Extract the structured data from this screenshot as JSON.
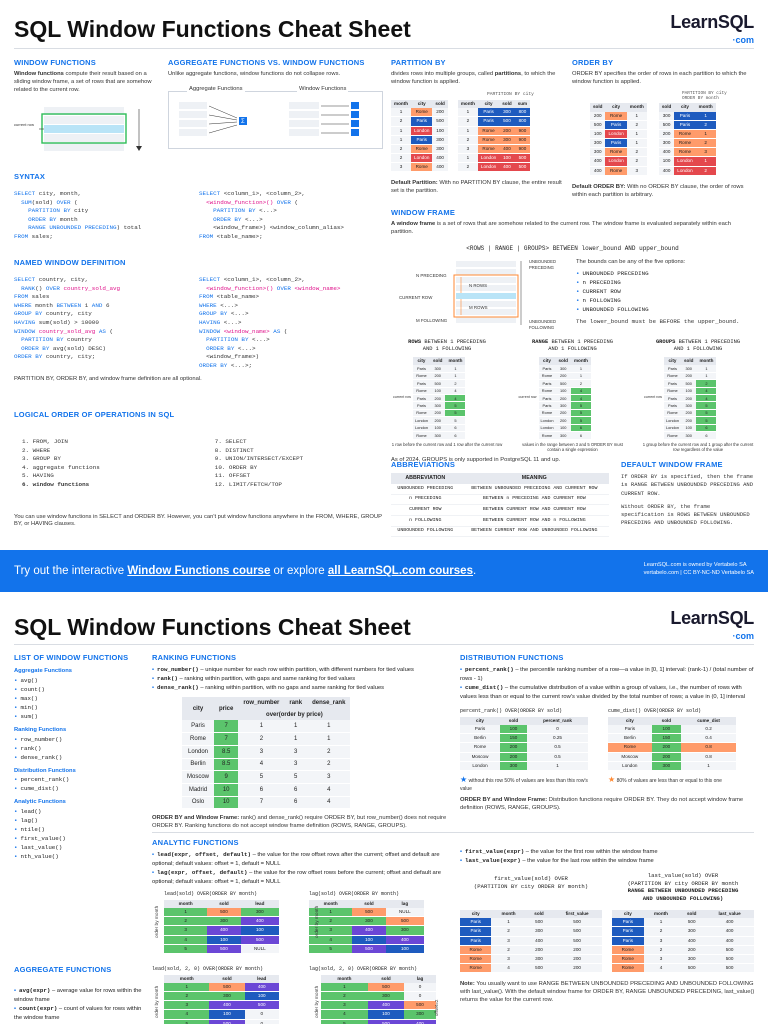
{
  "title1": "SQL Window Functions Cheat Sheet",
  "title2": "SQL Window Functions Cheat Sheet",
  "logo": {
    "name": "LearnSQL",
    "dot": "·",
    "tld": "com"
  },
  "window_functions": {
    "heading": "WINDOW FUNCTIONS",
    "text_bold": "Window functions",
    "text": " compute their result based on a sliding window frame, a set of rows that are somehow related to the current row.",
    "current_row": "current row"
  },
  "agg_vs_window": {
    "heading": "AGGREGATE FUNCTIONS VS. WINDOW FUNCTIONS",
    "text": "Unlike aggregate functions, window functions do not collapse rows.",
    "agg_label": "Aggregate Functions",
    "win_label": "Window Functions",
    "sigma": "Σ"
  },
  "partition_by": {
    "heading": "PARTITION BY",
    "text1": "divides rows into multiple groups, called ",
    "text_bold": "partitions",
    "text2": ", to which the window function is applied.",
    "caption": "PARTITION BY city",
    "cols": [
      "month",
      "city",
      "sold"
    ],
    "cols2": [
      "month",
      "city",
      "sold",
      "sum"
    ],
    "rows": [
      [
        "1",
        "Rome",
        "200"
      ],
      [
        "2",
        "Paris",
        "500"
      ],
      [
        "1",
        "London",
        "100"
      ],
      [
        "1",
        "Paris",
        "300"
      ],
      [
        "2",
        "Rome",
        "300"
      ],
      [
        "2",
        "London",
        "400"
      ],
      [
        "3",
        "Rome",
        "400"
      ]
    ],
    "rows2": [
      [
        "1",
        "Paris",
        "300",
        "800"
      ],
      [
        "2",
        "Paris",
        "500",
        "800"
      ],
      [
        "1",
        "Rome",
        "200",
        "900"
      ],
      [
        "2",
        "Rome",
        "300",
        "900"
      ],
      [
        "3",
        "Rome",
        "400",
        "900"
      ],
      [
        "1",
        "London",
        "100",
        "500"
      ],
      [
        "2",
        "London",
        "400",
        "500"
      ]
    ],
    "default_bold": "Default Partition:",
    "default_text": " With no PARTITION BY clause, the entire result set is the partition."
  },
  "order_by": {
    "heading": "ORDER BY",
    "text": "ORDER BY specifies the order of rows in each partition to which the window function is applied.",
    "caption1": "PARTITION BY city",
    "caption2": "ORDER BY month",
    "cols": [
      "sold",
      "city",
      "month"
    ],
    "rows": [
      [
        "200",
        "Rome",
        "1"
      ],
      [
        "500",
        "Paris",
        "2"
      ],
      [
        "100",
        "London",
        "1"
      ],
      [
        "300",
        "Paris",
        "1"
      ],
      [
        "300",
        "Rome",
        "2"
      ],
      [
        "400",
        "London",
        "2"
      ],
      [
        "400",
        "Rome",
        "3"
      ]
    ],
    "rows2": [
      [
        "300",
        "Paris",
        "1"
      ],
      [
        "500",
        "Paris",
        "2"
      ],
      [
        "200",
        "Rome",
        "1"
      ],
      [
        "300",
        "Rome",
        "2"
      ],
      [
        "400",
        "Rome",
        "3"
      ],
      [
        "100",
        "London",
        "1"
      ],
      [
        "400",
        "London",
        "2"
      ]
    ],
    "default_bold": "Default ORDER BY:",
    "default_text": " With no ORDER BY clause, the order of rows within each partition is arbitrary."
  },
  "syntax": {
    "heading": "SYNTAX",
    "left": [
      "SELECT city, month,",
      "  SUM(sold) OVER (",
      "    PARTITION BY city",
      "    ORDER BY month",
      "    RANGE UNBOUNDED PRECEDING) total",
      "FROM sales;"
    ],
    "right": [
      "SELECT <column_1>, <column_2>,",
      "  <window_function>() OVER (",
      "    PARTITION BY <...>",
      "    ORDER BY <...>",
      "    <window_frame>) <window_column_alias>",
      "FROM <table_name>;"
    ]
  },
  "named_window": {
    "heading": "NAMED WINDOW DEFINITION",
    "left": [
      "SELECT country, city,",
      "  RANK() OVER country_sold_avg",
      "FROM sales",
      "WHERE month BETWEEN 1 AND 6",
      "GROUP BY country, city",
      "HAVING sum(sold) > 10000",
      "WINDOW country_sold_avg AS (",
      "  PARTITION BY country",
      "  ORDER BY avg(sold) DESC)",
      "ORDER BY country, city;"
    ],
    "right": [
      "SELECT <column_1>, <column_2>,",
      "  <window_function>() OVER <window_name>",
      "FROM <table_name>",
      "WHERE <...>",
      "GROUP BY <...>",
      "HAVING <...>",
      "WINDOW <window_name> AS (",
      "  PARTITION BY <...>",
      "  ORDER BY <...>",
      "  <window_frame>)",
      "ORDER BY <...>;"
    ],
    "note": "PARTITION BY, ORDER BY, and window frame definition are all optional."
  },
  "logical_order": {
    "heading": "LOGICAL ORDER OF OPERATIONS IN SQL",
    "left": [
      "1. FROM, JOIN",
      "2. WHERE",
      "3. GROUP BY",
      "4. aggregate functions",
      "5. HAVING",
      "6. window functions"
    ],
    "right": [
      "7. SELECT",
      "8. DISTINCT",
      "9. UNION/INTERSECT/EXCEPT",
      "10. ORDER BY",
      "11. OFFSET",
      "12. LIMIT/FETCH/TOP"
    ],
    "note": "You can use window functions in SELECT and ORDER BY. However, you can't put window functions anywhere in the FROM, WHERE, GROUP BY, or HAVING clauses."
  },
  "window_frame": {
    "heading": "WINDOW FRAME",
    "text_bold": "A window frame",
    "text": " is a set of rows that are somehow related to the current row. The window frame is evaluated separately within each partition.",
    "syntax": "<ROWS | RANGE | GROUPS> BETWEEN lower_bound AND upper_bound",
    "labels": [
      "N PRECEDING",
      "CURRENT ROW",
      "M FOLLOWING",
      "N ROWS",
      "M ROWS",
      "UNBOUNDED PRECEDING",
      "UNBOUNDED FOLLOWING"
    ],
    "bounds_intro": "The bounds can be any of the five options:",
    "bounds": [
      "UNBOUNDED PRECEDING",
      "n PRECEDING",
      "CURRENT ROW",
      "n FOLLOWING",
      "UNBOUNDED FOLLOWING"
    ],
    "bounds_note": "The lower_bound must be BEFORE the upper_bound.",
    "modes": [
      {
        "kw": "ROWS",
        "rest": " BETWEEN 1 PRECEDING",
        "rest2": "AND 1 FOLLOWING",
        "caption": "1 row before the current row and 1 row after the current row"
      },
      {
        "kw": "RANGE",
        "rest": " BETWEEN 1 PRECEDING",
        "rest2": "AND 1 FOLLOWING",
        "caption": "values in the range between 3 and 5 ORDER BY must contain a single expression"
      },
      {
        "kw": "GROUPS",
        "rest": " BETWEEN 1 PRECEDING",
        "rest2": "AND 1 FOLLOWING",
        "caption": "1 group before the current row and 1 group after the current row regardless of the value"
      }
    ],
    "mini_cols": [
      "city",
      "sold",
      "month"
    ],
    "mini_rows": [
      [
        "Paris",
        "300",
        "1"
      ],
      [
        "Rome",
        "200",
        "1"
      ],
      [
        "Paris",
        "500",
        "2"
      ],
      [
        "Rome",
        "100",
        "4"
      ],
      [
        "Paris",
        "200",
        "4"
      ],
      [
        "Paris",
        "300",
        "5"
      ],
      [
        "Rome",
        "200",
        "5"
      ],
      [
        "London",
        "200",
        "5"
      ],
      [
        "London",
        "100",
        "6"
      ],
      [
        "Rome",
        "300",
        "6"
      ]
    ],
    "current_row_label": "current row",
    "note": "As of 2024, GROUPS is only supported in PostgreSQL 11 and up."
  },
  "abbreviations": {
    "heading": "ABBREVIATIONS",
    "cols": [
      "ABBREVIATION",
      "MEANING"
    ],
    "rows": [
      [
        "UNBOUNDED PRECEDING",
        "BETWEEN UNBOUNDED PRECEDING AND CURRENT ROW"
      ],
      [
        "n PRECEDING",
        "BETWEEN n PRECEDING AND CURRENT ROW"
      ],
      [
        "CURRENT ROW",
        "BETWEEN CURRENT ROW AND CURRENT ROW"
      ],
      [
        "n FOLLOWING",
        "BETWEEN CURRENT ROW AND n FOLLOWING"
      ],
      [
        "UNBOUNDED FOLLOWING",
        "BETWEEN CURRENT ROW AND UNBOUNDED FOLLOWING"
      ]
    ]
  },
  "default_frame": {
    "heading": "DEFAULT WINDOW FRAME",
    "p1": "If ORDER BY is specified, then the frame is RANGE BETWEEN UNBOUNDED PRECEDING AND CURRENT ROW.",
    "p2": "Without ORDER BY, the frame specification is ROWS BETWEEN UNBOUNDED PRECEDING AND UNBOUNDED FOLLOWING."
  },
  "banner": {
    "pre": "Try out the interactive ",
    "link1": "Window Functions course",
    "mid": " or explore ",
    "link2": "all LearnSQL.com courses",
    "post": ".",
    "lic1": "LearnSQL.com is owned by Vertabelo SA",
    "lic2": "vertabelo.com | CC BY-NC-ND Vertabelo SA"
  },
  "list_fns": {
    "heading": "LIST OF WINDOW FUNCTIONS",
    "groups": [
      {
        "name": "Aggregate Functions",
        "items": [
          "avg()",
          "count()",
          "max()",
          "min()",
          "sum()"
        ]
      },
      {
        "name": "Ranking Functions",
        "items": [
          "row_number()",
          "rank()",
          "dense_rank()"
        ]
      },
      {
        "name": "Distribution Functions",
        "items": [
          "percent_rank()",
          "cume_dist()"
        ]
      },
      {
        "name": "Analytic Functions",
        "items": [
          "lead()",
          "lag()",
          "ntile()",
          "first_value()",
          "last_value()",
          "nth_value()"
        ]
      }
    ]
  },
  "ranking": {
    "heading": "RANKING FUNCTIONS",
    "items": [
      {
        "fn": "row_number()",
        "text": " – unique number for each row within partition, with different numbers for tied values"
      },
      {
        "fn": "rank()",
        "text": " – ranking within partition, with gaps and same ranking for tied values"
      },
      {
        "fn": "dense_rank()",
        "text": " – ranking within partition, with no gaps and same ranking for tied values"
      }
    ],
    "cols": [
      "city",
      "price",
      "row_number",
      "rank",
      "dense_rank"
    ],
    "over": "over(order by price)",
    "rows": [
      [
        "Paris",
        "7",
        "1",
        "1",
        "1"
      ],
      [
        "Rome",
        "7",
        "2",
        "1",
        "1"
      ],
      [
        "London",
        "8.5",
        "3",
        "3",
        "2"
      ],
      [
        "Berlin",
        "8.5",
        "4",
        "3",
        "2"
      ],
      [
        "Moscow",
        "9",
        "5",
        "5",
        "3"
      ],
      [
        "Madrid",
        "10",
        "6",
        "6",
        "4"
      ],
      [
        "Oslo",
        "10",
        "7",
        "6",
        "4"
      ]
    ],
    "note_bold": "ORDER BY and Window Frame:",
    "note": " rank() and dense_rank() require ORDER BY, but row_number() does not require ORDER BY. Ranking functions do not accept window frame definition (ROWS, RANGE, GROUPS)."
  },
  "distribution": {
    "heading": "DISTRIBUTION FUNCTIONS",
    "items": [
      {
        "fn": "percent_rank()",
        "text": " – the percentile ranking number of a row—a value in [0, 1] interval: (rank-1) / (total number of rows - 1)"
      },
      {
        "fn": "cume_dist()",
        "text": " – the cumulative distribution of a value within a group of values, i.e., the number of rows with values less than or equal to the current row's value divided by the total number of rows; a value in (0, 1] interval"
      }
    ],
    "t1_title": "percent_rank() OVER(ORDER BY sold)",
    "t1_cols": [
      "city",
      "sold",
      "percent_rank"
    ],
    "t1_rows": [
      [
        "Paris",
        "100",
        "0"
      ],
      [
        "Berlin",
        "150",
        "0.25"
      ],
      [
        "Rome",
        "200",
        "0.5"
      ],
      [
        "Moscow",
        "200",
        "0.5"
      ],
      [
        "London",
        "300",
        "1"
      ]
    ],
    "t2_title": "cume_dist() OVER(ORDER BY sold)",
    "t2_cols": [
      "city",
      "sold",
      "cume_dist"
    ],
    "t2_rows": [
      [
        "Paris",
        "100",
        "0.2"
      ],
      [
        "Berlin",
        "150",
        "0.4"
      ],
      [
        "Rome",
        "200",
        "0.8"
      ],
      [
        "Moscow",
        "200",
        "0.8"
      ],
      [
        "London",
        "300",
        "1"
      ]
    ],
    "cap1": "without this row 50% of values are less than this row's value",
    "cap2": "80% of values are less than or equal to this one",
    "note_bold": "ORDER BY and Window Frame:",
    "note": " Distribution functions require ORDER BY. They do not accept window frame definition (ROWS, RANGE, GROUPS)."
  },
  "analytic": {
    "heading": "ANALYTIC FUNCTIONS",
    "lead_fn": "lead(expr, offset, default)",
    "lead_text": " – the value for the row offset rows after the current; offset and default are optional; default values: offset = 1, default = NULL",
    "lag_fn": "lag(expr, offset, default)",
    "lag_text": " – the value for the row offset rows before the current; offset and default are optional; default values: offset = 1, default = NULL",
    "t_lead_title": "lead(sold) OVER(ORDER BY month)",
    "t_lag_title": "lag(sold) OVER(ORDER BY month)",
    "t_lead2_title": "lead(sold, 2, 0) OVER(ORDER BY month)",
    "t_lag2_title": "lag(sold, 2, 0) OVER(ORDER BY month)",
    "cols_lead": [
      "month",
      "sold",
      "lead"
    ],
    "cols_lag": [
      "month",
      "sold",
      "lag"
    ],
    "lead_rows": [
      [
        "1",
        "500",
        "300"
      ],
      [
        "2",
        "300",
        "400"
      ],
      [
        "3",
        "400",
        "100"
      ],
      [
        "4",
        "100",
        "500"
      ],
      [
        "5",
        "500",
        "NULL"
      ]
    ],
    "lag_rows": [
      [
        "1",
        "500",
        "NULL"
      ],
      [
        "2",
        "300",
        "500"
      ],
      [
        "3",
        "400",
        "300"
      ],
      [
        "4",
        "100",
        "400"
      ],
      [
        "5",
        "500",
        "100"
      ]
    ],
    "lead2_rows": [
      [
        "1",
        "500",
        "400"
      ],
      [
        "2",
        "300",
        "100"
      ],
      [
        "3",
        "400",
        "500"
      ],
      [
        "4",
        "100",
        "0"
      ],
      [
        "5",
        "500",
        "0"
      ]
    ],
    "lag2_rows": [
      [
        "1",
        "500",
        "0"
      ],
      [
        "2",
        "300",
        "0"
      ],
      [
        "3",
        "400",
        "500"
      ],
      [
        "4",
        "100",
        "300"
      ],
      [
        "5",
        "500",
        "400"
      ]
    ],
    "axis": "order by month",
    "offset": "offset=2"
  },
  "first_last": {
    "first_fn": "first_value(expr)",
    "first_text": " – the value for the first row within the window frame",
    "last_fn": "last_value(expr)",
    "last_text": " – the value for the last row within the window frame",
    "t1_title1": "first_value(sold) OVER",
    "t1_title2": "(PARTITION BY city ORDER BY month)",
    "t2_title1": "last_value(sold) OVER",
    "t2_title2": "(PARTITION BY city ORDER BY month",
    "t2_title3": "RANGE BETWEEN UNBOUNDED PRECEDING",
    "t2_title4": "AND UNBOUNDED FOLLOWING)",
    "cols1": [
      "city",
      "month",
      "sold",
      "first_value"
    ],
    "cols2": [
      "city",
      "month",
      "sold",
      "last_value"
    ],
    "rows1": [
      [
        "Paris",
        "1",
        "500",
        "500"
      ],
      [
        "Paris",
        "2",
        "300",
        "500"
      ],
      [
        "Paris",
        "3",
        "400",
        "500"
      ],
      [
        "Rome",
        "2",
        "200",
        "200"
      ],
      [
        "Rome",
        "3",
        "300",
        "200"
      ],
      [
        "Rome",
        "4",
        "500",
        "200"
      ]
    ],
    "rows2": [
      [
        "Paris",
        "1",
        "500",
        "400"
      ],
      [
        "Paris",
        "2",
        "300",
        "400"
      ],
      [
        "Paris",
        "3",
        "400",
        "400"
      ],
      [
        "Rome",
        "2",
        "200",
        "500"
      ],
      [
        "Rome",
        "3",
        "300",
        "500"
      ],
      [
        "Rome",
        "4",
        "500",
        "500"
      ]
    ],
    "note_bold": "Note:",
    "note": " You usually want to use RANGE BETWEEN UNBOUNDED PRECEDING AND UNBOUNDED FOLLOWING with last_value(). With the default window frame for ORDER BY, RANGE UNBOUNDED PRECEDING, last_value() returns the value for the current row."
  },
  "aggregate": {
    "heading": "AGGREGATE FUNCTIONS",
    "items": [
      {
        "fn": "avg(expr)",
        "text": " – average value for rows within the window frame"
      },
      {
        "fn": "count(expr)",
        "text": " – count of values for rows within the window frame"
      }
    ]
  }
}
